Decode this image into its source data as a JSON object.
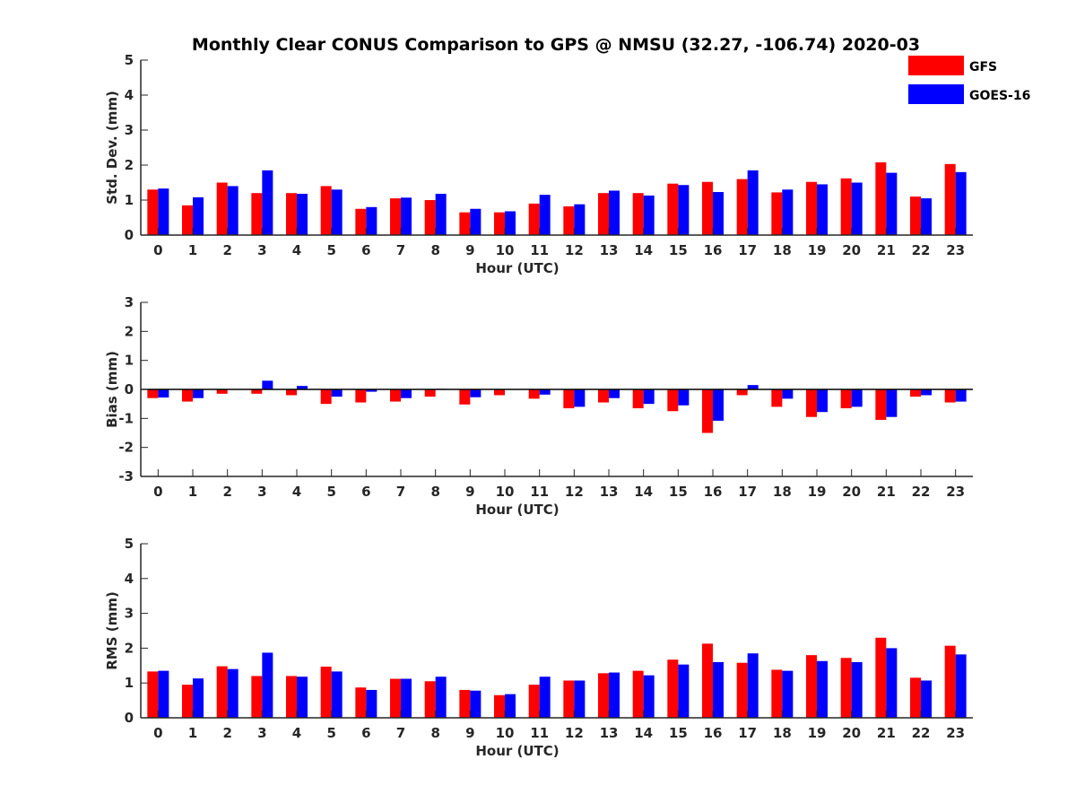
{
  "chart_data": {
    "title": "Monthly Clear CONUS Comparison to GPS @ NMSU (32.27, -106.74) 2020-03",
    "legend": {
      "placement": "top-right",
      "entries": [
        {
          "name": "GFS",
          "color": "#ff0000"
        },
        {
          "name": "GOES-16",
          "color": "#0000ff"
        }
      ]
    },
    "panels": [
      {
        "type": "bar",
        "xlabel": "Hour (UTC)",
        "ylabel": "Std. Dev. (mm)",
        "ylim": [
          0,
          5
        ],
        "yticks": [
          0,
          1,
          2,
          3,
          4,
          5
        ],
        "grid": false,
        "categories": [
          "0",
          "1",
          "2",
          "3",
          "4",
          "5",
          "6",
          "7",
          "8",
          "9",
          "10",
          "11",
          "12",
          "13",
          "14",
          "15",
          "16",
          "17",
          "18",
          "19",
          "20",
          "21",
          "22",
          "23"
        ],
        "series": [
          {
            "name": "GFS",
            "values": [
              1.3,
              0.85,
              1.5,
              1.2,
              1.2,
              1.4,
              0.75,
              1.05,
              1.0,
              0.65,
              0.65,
              0.9,
              0.82,
              1.2,
              1.2,
              1.47,
              1.52,
              1.6,
              1.22,
              1.52,
              1.62,
              2.08,
              1.1,
              2.03
            ]
          },
          {
            "name": "GOES-16",
            "values": [
              1.33,
              1.08,
              1.4,
              1.85,
              1.18,
              1.3,
              0.8,
              1.07,
              1.18,
              0.75,
              0.68,
              1.15,
              0.88,
              1.27,
              1.13,
              1.43,
              1.23,
              1.85,
              1.3,
              1.45,
              1.5,
              1.78,
              1.05,
              1.8
            ]
          }
        ]
      },
      {
        "type": "bar",
        "xlabel": "Hour (UTC)",
        "ylabel": "Bias (mm)",
        "ylim": [
          -3,
          3
        ],
        "yticks": [
          -3,
          -2,
          -1,
          0,
          1,
          2,
          3
        ],
        "zero_line": true,
        "grid": false,
        "categories": [
          "0",
          "1",
          "2",
          "3",
          "4",
          "5",
          "6",
          "7",
          "8",
          "9",
          "10",
          "11",
          "12",
          "13",
          "14",
          "15",
          "16",
          "17",
          "18",
          "19",
          "20",
          "21",
          "22",
          "23"
        ],
        "series": [
          {
            "name": "GFS",
            "values": [
              -0.3,
              -0.42,
              -0.15,
              -0.15,
              -0.2,
              -0.5,
              -0.45,
              -0.42,
              -0.25,
              -0.52,
              -0.2,
              -0.32,
              -0.65,
              -0.45,
              -0.65,
              -0.75,
              -1.5,
              -0.2,
              -0.6,
              -0.95,
              -0.65,
              -1.05,
              -0.25,
              -0.45
            ]
          },
          {
            "name": "GOES-16",
            "values": [
              -0.28,
              -0.3,
              0.0,
              0.3,
              0.12,
              -0.25,
              -0.08,
              -0.3,
              0.02,
              -0.27,
              0.0,
              -0.18,
              -0.6,
              -0.3,
              -0.5,
              -0.55,
              -1.08,
              0.15,
              -0.32,
              -0.78,
              -0.6,
              -0.95,
              -0.2,
              -0.42
            ]
          }
        ]
      },
      {
        "type": "bar",
        "xlabel": "Hour (UTC)",
        "ylabel": "RMS (mm)",
        "ylim": [
          0,
          5
        ],
        "yticks": [
          0,
          1,
          2,
          3,
          4,
          5
        ],
        "grid": false,
        "categories": [
          "0",
          "1",
          "2",
          "3",
          "4",
          "5",
          "6",
          "7",
          "8",
          "9",
          "10",
          "11",
          "12",
          "13",
          "14",
          "15",
          "16",
          "17",
          "18",
          "19",
          "20",
          "21",
          "22",
          "23"
        ],
        "series": [
          {
            "name": "GFS",
            "values": [
              1.33,
              0.95,
              1.48,
              1.2,
              1.2,
              1.47,
              0.87,
              1.12,
              1.05,
              0.8,
              0.65,
              0.95,
              1.07,
              1.28,
              1.35,
              1.67,
              2.13,
              1.58,
              1.38,
              1.8,
              1.72,
              2.3,
              1.15,
              2.07
            ]
          },
          {
            "name": "GOES-16",
            "values": [
              1.35,
              1.13,
              1.4,
              1.87,
              1.18,
              1.33,
              0.8,
              1.12,
              1.18,
              0.78,
              0.68,
              1.18,
              1.07,
              1.3,
              1.22,
              1.53,
              1.6,
              1.85,
              1.35,
              1.63,
              1.6,
              2.0,
              1.07,
              1.82
            ]
          }
        ]
      }
    ]
  }
}
